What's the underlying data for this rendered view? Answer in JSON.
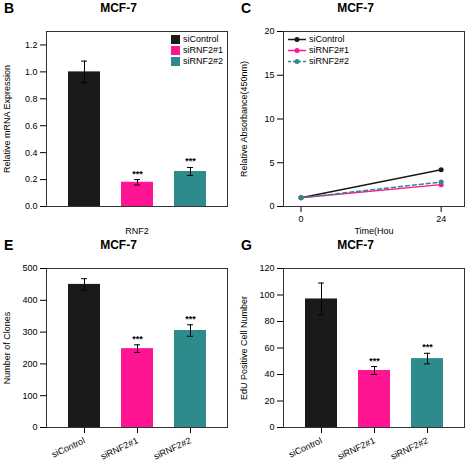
{
  "chart_data": [
    {
      "type": "bar",
      "title": "MCF-7",
      "categories": [
        "siControl",
        "siRNF2#1",
        "siRNF2#2"
      ],
      "values": [
        1.0,
        0.18,
        0.26
      ],
      "errors": [
        0.08,
        0.02,
        0.03
      ],
      "colors": [
        "#1a1a1a",
        "#FF1493",
        "#2E8B8B"
      ],
      "xlabel": "RNF2",
      "ylabel": "Relative mRNA Expression",
      "ylim": [
        0,
        1.3
      ],
      "yticks": [
        {
          "value": 0,
          "label": "0.0"
        },
        0.2,
        0.4,
        0.6,
        0.8,
        {
          "value": 1,
          "label": "1.0"
        },
        1.2
      ],
      "tick_labels": "y",
      "legend": "upper right",
      "annotations": [
        {
          "text": "B"
        },
        {
          "text": "***",
          "category": "siRNF2#1"
        },
        {
          "text": "***",
          "category": "siRNF2#2"
        }
      ]
    },
    {
      "type": "line",
      "title": "MCF-7",
      "x": [
        0,
        24
      ],
      "series": [
        {
          "name": "siControl",
          "color": "#1a1a1a",
          "values": [
            1.0,
            4.2
          ],
          "marker": "circle",
          "line_style": "solid"
        },
        {
          "name": "siRNF2#1",
          "color": "#FF1493",
          "values": [
            1.0,
            2.5
          ],
          "marker": "circle",
          "line_style": "solid"
        },
        {
          "name": "siRNF2#2",
          "color": "#2E8B8B",
          "values": [
            1.0,
            2.8
          ],
          "marker": "circle",
          "line_style": "dashed"
        }
      ],
      "xlabel": "Time(Hou",
      "ylabel": "Relative Absorbance(450nm)",
      "xlim": [
        -3,
        28
      ],
      "xticks": [
        0,
        24
      ],
      "ylim": [
        0,
        20
      ],
      "yticks": [
        0,
        5,
        10,
        15,
        20
      ],
      "legend": "upper left",
      "annotations": [
        {
          "text": "C"
        }
      ]
    },
    {
      "type": "bar",
      "title": "MCF-7",
      "categories": [
        "siControl",
        "siRNF2#1",
        "siRNF2#2"
      ],
      "values": [
        450,
        248,
        305
      ],
      "errors": [
        18,
        12,
        18
      ],
      "colors": [
        "#1a1a1a",
        "#FF1493",
        "#2E8B8B"
      ],
      "ylabel": "Number of Clones",
      "ylim": [
        0,
        500
      ],
      "yticks": [
        0,
        100,
        200,
        300,
        400,
        500
      ],
      "annotations": [
        {
          "text": "E"
        },
        {
          "text": "***",
          "category": "siRNF2#1"
        },
        {
          "text": "***",
          "category": "siRNF2#2"
        }
      ]
    },
    {
      "type": "bar",
      "title": "MCF-7",
      "categories": [
        "siControl",
        "siRNF2#1",
        "siRNF2#2"
      ],
      "values": [
        97,
        43,
        52
      ],
      "errors": [
        12,
        3,
        4
      ],
      "colors": [
        "#1a1a1a",
        "#FF1493",
        "#2E8B8B"
      ],
      "ylabel": "EdU Positive Cell Number",
      "ylim": [
        0,
        120
      ],
      "yticks": [
        0,
        20,
        40,
        60,
        80,
        100,
        120
      ],
      "annotations": [
        {
          "text": "G"
        },
        {
          "text": "***",
          "category": "siRNF2#1"
        },
        {
          "text": "***",
          "category": "siRNF2#2"
        }
      ]
    }
  ]
}
